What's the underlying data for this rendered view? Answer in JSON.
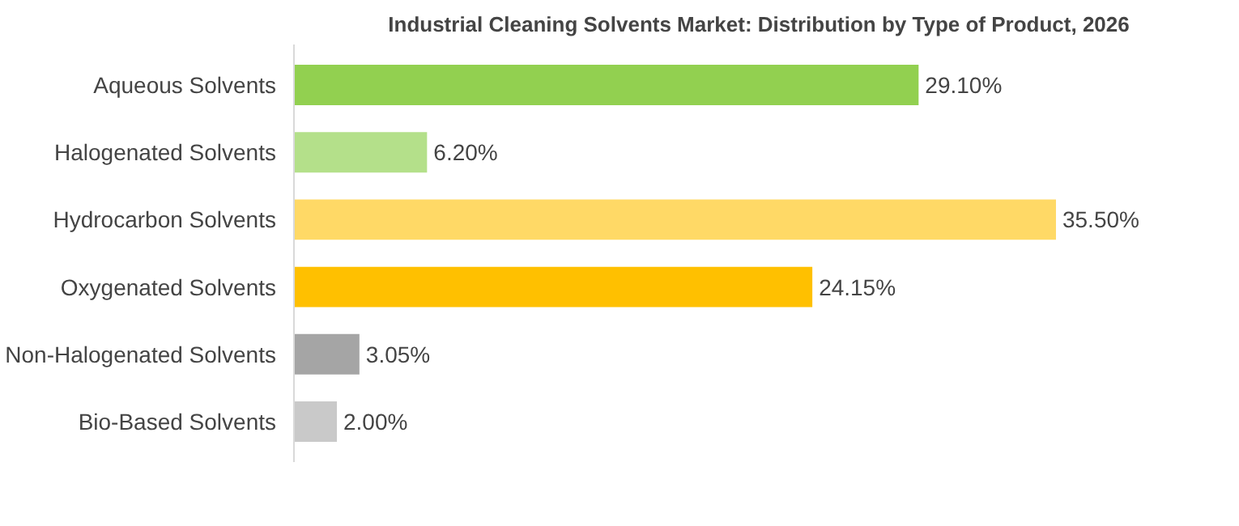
{
  "chart_data": {
    "type": "bar",
    "orientation": "horizontal",
    "title": "Industrial Cleaning Solvents Market: Distribution by Type of Product, 2026",
    "categories": [
      "Aqueous Solvents",
      "Halogenated Solvents",
      "Hydrocarbon Solvents",
      "Oxygenated Solvents",
      "Non-Halogenated Solvents",
      "Bio-Based Solvents"
    ],
    "values": [
      29.1,
      6.2,
      35.5,
      24.15,
      3.05,
      2.0
    ],
    "colors": [
      "#92d050",
      "#b4e08a",
      "#ffd966",
      "#ffc000",
      "#a5a5a5",
      "#c9c9c9"
    ],
    "value_labels": [
      "29.10%",
      "6.20%",
      "35.50%",
      "24.15%",
      "3.05%",
      "2.00%"
    ]
  }
}
